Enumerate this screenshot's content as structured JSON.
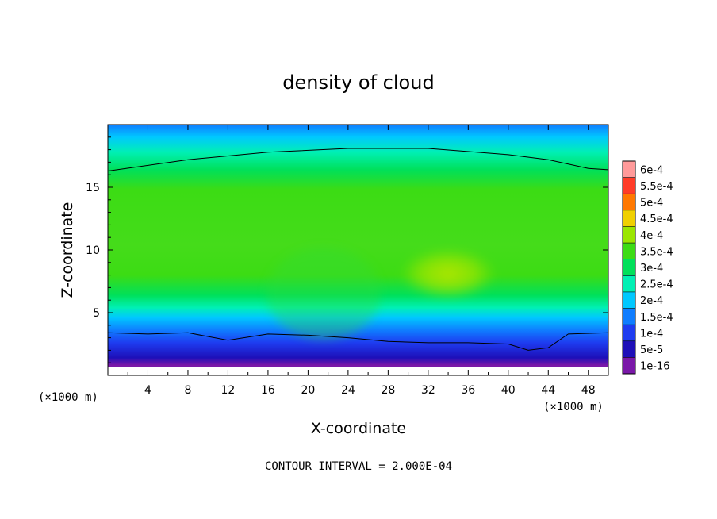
{
  "chart_data": {
    "type": "heatmap",
    "title": "density of cloud",
    "xlabel": "X-coordinate",
    "ylabel": "Z-coordinate",
    "x_unit_left": "(×1000 m)",
    "x_unit_right": "(×1000 m)",
    "xlim": [
      0,
      50
    ],
    "ylim": [
      0,
      20
    ],
    "x_ticks": [
      "4",
      "8",
      "12",
      "16",
      "20",
      "24",
      "28",
      "32",
      "36",
      "40",
      "44",
      "48"
    ],
    "x_tick_values": [
      4,
      8,
      12,
      16,
      20,
      24,
      28,
      32,
      36,
      40,
      44,
      48
    ],
    "y_ticks": [
      "5",
      "10",
      "15"
    ],
    "y_tick_values": [
      5,
      10,
      15
    ],
    "colorbar": {
      "labels": [
        "1e-16",
        "5e-5",
        "1e-4",
        "1.5e-4",
        "2e-4",
        "2.5e-4",
        "3e-4",
        "3.5e-4",
        "4e-4",
        "4.5e-4",
        "5e-4",
        "5.5e-4",
        "6e-4"
      ],
      "colors": [
        "#7a18a8",
        "#1e0fb8",
        "#1e3cf0",
        "#0f7dff",
        "#00c8ff",
        "#00f0b4",
        "#00e05a",
        "#3cdc14",
        "#9be600",
        "#f0d000",
        "#ff7800",
        "#ff3c28",
        "#ff9a9a"
      ]
    },
    "field_description_values": {
      "upper_plateau_value": 0.0003,
      "core_max_value": 0.0004,
      "core_center": [
        34,
        8
      ],
      "top_level": 0.0001,
      "bottom_level": 5e-05
    },
    "contour_lines": [
      {
        "name": "upper",
        "x": [
          0,
          8,
          16,
          24,
          32,
          40,
          44,
          48,
          50
        ],
        "y": [
          16.3,
          17.2,
          17.8,
          18.1,
          18.1,
          17.6,
          17.2,
          16.5,
          16.4
        ]
      },
      {
        "name": "lower",
        "x": [
          0,
          4,
          8,
          12,
          16,
          20,
          24,
          28,
          32,
          36,
          40,
          42,
          44,
          46,
          50
        ],
        "y": [
          3.4,
          3.3,
          3.4,
          2.8,
          3.3,
          3.2,
          3.0,
          2.7,
          2.6,
          2.6,
          2.5,
          2.0,
          2.2,
          3.3,
          3.4
        ]
      }
    ],
    "annotation": "CONTOUR INTERVAL = 2.000E-04",
    "grid": false,
    "legend": "colorbar-right"
  }
}
